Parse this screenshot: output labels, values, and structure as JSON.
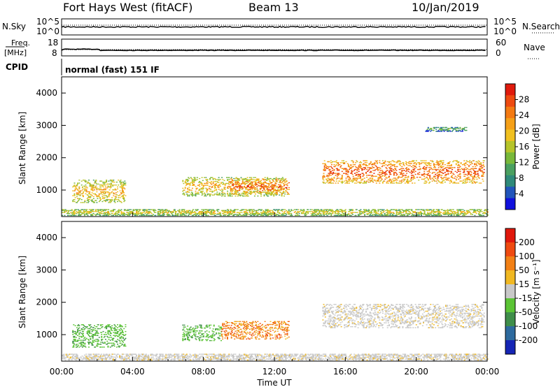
{
  "header": {
    "radar": "Fort Hays West (fitACF)",
    "beam": "Beam 13",
    "date": "10/Jan/2019"
  },
  "top_panels": {
    "nsky_label": "N.Sky",
    "nsky_ticks": [
      "10^5",
      "10^0"
    ],
    "nsearch_label": "N.Search",
    "nsearch_ticks": [
      "10^5",
      "10^0"
    ],
    "freq_label": "Freq.",
    "freq_unit": "[MHz]",
    "freq_ticks": [
      "18",
      "8"
    ],
    "nave_label": "Nave",
    "nave_ticks": [
      "60",
      "0"
    ],
    "cpid_label": "CPID",
    "cpid_text": "normal (fast) 151 IF"
  },
  "chart_data": [
    {
      "type": "heatmap",
      "name": "power",
      "ylabel": "Slant Range [km]",
      "yticks": [
        1000,
        2000,
        3000,
        4000
      ],
      "ylim": [
        180,
        4500
      ],
      "xlim": [
        0,
        24
      ],
      "colorbar": {
        "label": "Power [dB]",
        "ticks": [
          "28",
          "24",
          "20",
          "16",
          "12",
          "8",
          "4"
        ],
        "colors": [
          "#1111dd",
          "#2255bb",
          "#2f8a7a",
          "#4aa060",
          "#78b83a",
          "#b6c42a",
          "#f0c020",
          "#f5a018",
          "#f47a12",
          "#ee4a10",
          "#e01a0c"
        ]
      },
      "echo_regions": [
        {
          "t0": 0.6,
          "t1": 3.6,
          "r_lo": 600,
          "r_hi": 1300,
          "level": "mid"
        },
        {
          "t0": 6.8,
          "t1": 12.6,
          "r_lo": 800,
          "r_hi": 1400,
          "level": "mid"
        },
        {
          "t0": 9.5,
          "t1": 12.8,
          "r_lo": 850,
          "r_hi": 1350,
          "level": "high"
        },
        {
          "t0": 14.7,
          "t1": 23.8,
          "r_lo": 1200,
          "r_hi": 1900,
          "level": "high"
        },
        {
          "t0": 20.5,
          "t1": 22.8,
          "r_lo": 2800,
          "r_hi": 2950,
          "level": "low"
        },
        {
          "t0": 0.0,
          "t1": 24.0,
          "r_lo": 200,
          "r_hi": 400,
          "level": "ground"
        }
      ]
    },
    {
      "type": "heatmap",
      "name": "velocity",
      "ylabel": "Slant Range [km]",
      "yticks": [
        1000,
        2000,
        3000,
        4000
      ],
      "ylim": [
        180,
        4500
      ],
      "xlim": [
        0,
        24
      ],
      "xticks": [
        "00:00",
        "04:00",
        "08:00",
        "12:00",
        "16:00",
        "20:00",
        "00:00"
      ],
      "xlabel": "Time UT",
      "colorbar": {
        "label": "Velocity [m s⁻¹]",
        "ticks": [
          "200",
          "100",
          "50",
          "15",
          "-15",
          "-50",
          "-100",
          "-200"
        ],
        "colors": [
          "#1525b5",
          "#2e6a9e",
          "#3f8e4a",
          "#5bc435",
          "#c8c8c8",
          "#f0b822",
          "#f28015",
          "#ef4a10",
          "#e0180c"
        ]
      },
      "echo_regions": [
        {
          "t0": 0.6,
          "t1": 3.6,
          "r_lo": 600,
          "r_hi": 1300,
          "vel": "toward"
        },
        {
          "t0": 6.8,
          "t1": 9.0,
          "r_lo": 800,
          "r_hi": 1300,
          "vel": "toward"
        },
        {
          "t0": 9.0,
          "t1": 12.8,
          "r_lo": 850,
          "r_hi": 1400,
          "vel": "away"
        },
        {
          "t0": 14.7,
          "t1": 23.8,
          "r_lo": 1200,
          "r_hi": 1950,
          "vel": "ground"
        },
        {
          "t0": 0.0,
          "t1": 24.0,
          "r_lo": 200,
          "r_hi": 400,
          "vel": "ground"
        }
      ]
    }
  ]
}
